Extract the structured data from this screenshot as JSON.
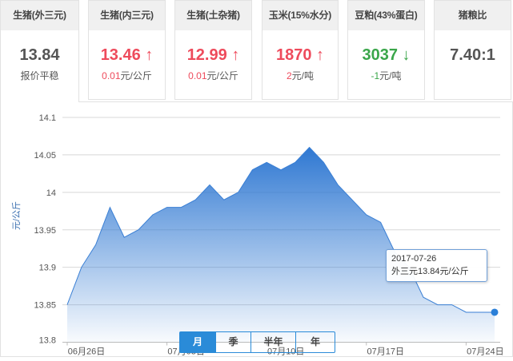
{
  "cards": [
    {
      "title": "生猪(外三元)",
      "value": "13.84",
      "change": "报价平稳",
      "trend": "flat"
    },
    {
      "title": "生猪(内三元)",
      "value": "13.46",
      "arrow": "↑",
      "change_num": "0.01",
      "change_unit": "元/公斤",
      "trend": "up"
    },
    {
      "title": "生猪(土杂猪)",
      "value": "12.99",
      "arrow": "↑",
      "change_num": "0.01",
      "change_unit": "元/公斤",
      "trend": "up"
    },
    {
      "title": "玉米(15%水分)",
      "value": "1870",
      "arrow": "↑",
      "change_num": "2",
      "change_unit": "元/吨",
      "trend": "up"
    },
    {
      "title": "豆粕(43%蛋白)",
      "value": "3037",
      "arrow": "↓",
      "change_num": "-1",
      "change_unit": "元/吨",
      "trend": "down"
    },
    {
      "title": "猪粮比",
      "value": "7.40:1",
      "trend": "flat"
    }
  ],
  "colors": {
    "up": "#ee4b5c",
    "down": "#3aa64a",
    "accent": "#2a8bd8",
    "area": "#3a7fd4"
  },
  "tooltip": {
    "date": "2017-07-26",
    "text": "外三元13.84元/公斤"
  },
  "periods": [
    {
      "label": "月",
      "active": true
    },
    {
      "label": "季"
    },
    {
      "label": "半年"
    },
    {
      "label": "年"
    }
  ],
  "chart_data": {
    "type": "area",
    "ylabel": "元/公斤",
    "ylim": [
      13.8,
      14.1
    ],
    "yticks": [
      "13.8",
      "13.85",
      "13.9",
      "13.95",
      "14",
      "14.05",
      "14.1"
    ],
    "xticks": [
      "06月26日",
      "07月03日",
      "07月10日",
      "07月17日",
      "07月24日"
    ],
    "grid": true,
    "x": [
      "06-26",
      "06-27",
      "06-28",
      "06-29",
      "06-30",
      "07-01",
      "07-02",
      "07-03",
      "07-04",
      "07-05",
      "07-06",
      "07-07",
      "07-08",
      "07-09",
      "07-10",
      "07-11",
      "07-12",
      "07-13",
      "07-14",
      "07-15",
      "07-16",
      "07-17",
      "07-18",
      "07-19",
      "07-20",
      "07-21",
      "07-22",
      "07-23",
      "07-24",
      "07-25",
      "07-26"
    ],
    "values": [
      13.85,
      13.9,
      13.93,
      13.98,
      13.94,
      13.95,
      13.97,
      13.98,
      13.98,
      13.99,
      14.01,
      13.99,
      14.0,
      14.03,
      14.04,
      14.03,
      14.04,
      14.06,
      14.04,
      14.01,
      13.99,
      13.97,
      13.96,
      13.92,
      13.9,
      13.86,
      13.85,
      13.85,
      13.84,
      13.84,
      13.84
    ]
  }
}
